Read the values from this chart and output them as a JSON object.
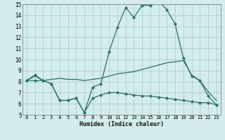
{
  "x": [
    0,
    1,
    2,
    3,
    4,
    5,
    6,
    7,
    8,
    9,
    10,
    11,
    12,
    13,
    14,
    15,
    16,
    17,
    18,
    19,
    20,
    21,
    22,
    23
  ],
  "line_max": [
    8.1,
    8.6,
    8.1,
    7.8,
    6.3,
    6.3,
    6.5,
    5.2,
    7.5,
    7.8,
    10.7,
    12.9,
    14.7,
    13.8,
    14.9,
    14.9,
    15.3,
    14.5,
    13.2,
    10.1,
    8.5,
    8.1,
    6.7,
    5.9
  ],
  "line_mean": [
    8.1,
    8.5,
    8.1,
    8.2,
    8.3,
    8.2,
    8.2,
    8.1,
    8.2,
    8.3,
    8.5,
    8.7,
    8.8,
    8.9,
    9.1,
    9.3,
    9.5,
    9.7,
    9.8,
    9.9,
    8.6,
    8.1,
    7.1,
    6.3
  ],
  "line_min": [
    8.1,
    8.1,
    8.1,
    7.8,
    6.3,
    6.3,
    6.5,
    5.2,
    6.5,
    6.8,
    7.0,
    7.0,
    6.9,
    6.8,
    6.7,
    6.7,
    6.6,
    6.5,
    6.4,
    6.3,
    6.2,
    6.1,
    6.1,
    5.9
  ],
  "line_color": "#2a7068",
  "background_color": "#d4ecec",
  "grid_color": "#aad0d0",
  "xlabel": "Humidex (Indice chaleur)",
  "ylim": [
    5,
    15
  ],
  "xlim": [
    -0.5,
    23.5
  ],
  "yticks": [
    5,
    6,
    7,
    8,
    9,
    10,
    11,
    12,
    13,
    14,
    15
  ],
  "xticks": [
    0,
    1,
    2,
    3,
    4,
    5,
    6,
    7,
    8,
    9,
    10,
    11,
    12,
    13,
    14,
    15,
    16,
    17,
    18,
    19,
    20,
    21,
    22,
    23
  ]
}
